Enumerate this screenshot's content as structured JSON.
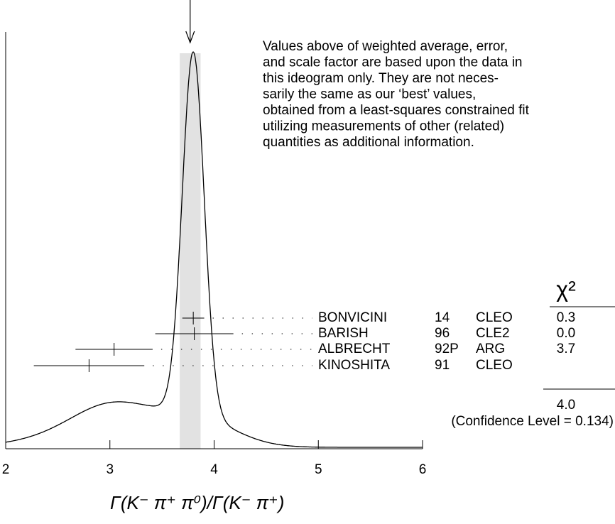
{
  "chart_data": {
    "type": "ideogram",
    "xlabel": "Γ(K⁻ π⁺ π⁰)/Γ(K⁻ π⁺)",
    "xlim": [
      2,
      6
    ],
    "xticks": [
      2,
      3,
      4,
      5,
      6
    ],
    "average": {
      "value": 3.77,
      "error": 0.1
    },
    "note_lines": [
      "Values above of weighted average, error,",
      "and scale factor are based upon the data in",
      "this ideogram only.  They are not neces-",
      "sarily the same as our ‘best’ values,",
      "obtained from a least-squares constrained fit",
      "utilizing measurements of other (related)",
      "quantities as additional information."
    ],
    "chi2_header": "χ²",
    "names": [
      "BONVICINI",
      "BARISH",
      "ALBRECHT",
      "KINOSHITA"
    ],
    "years": [
      "14",
      "96",
      "92P",
      "91"
    ],
    "experiments": [
      "CLEO",
      "CLE2",
      "ARG",
      "CLEO"
    ],
    "values": [
      3.8,
      3.81,
      3.04,
      2.8
    ],
    "errors": [
      0.105,
      0.375,
      0.37,
      0.53
    ],
    "chi2": [
      0.3,
      0,
      3.7,
      null
    ],
    "chi2_labels": [
      "0.3",
      "0.0",
      "3.7",
      null
    ],
    "chi2_total": 4,
    "chi2_total_label": "4.0",
    "confidence_text": "(Confidence Level = 0.134)"
  }
}
